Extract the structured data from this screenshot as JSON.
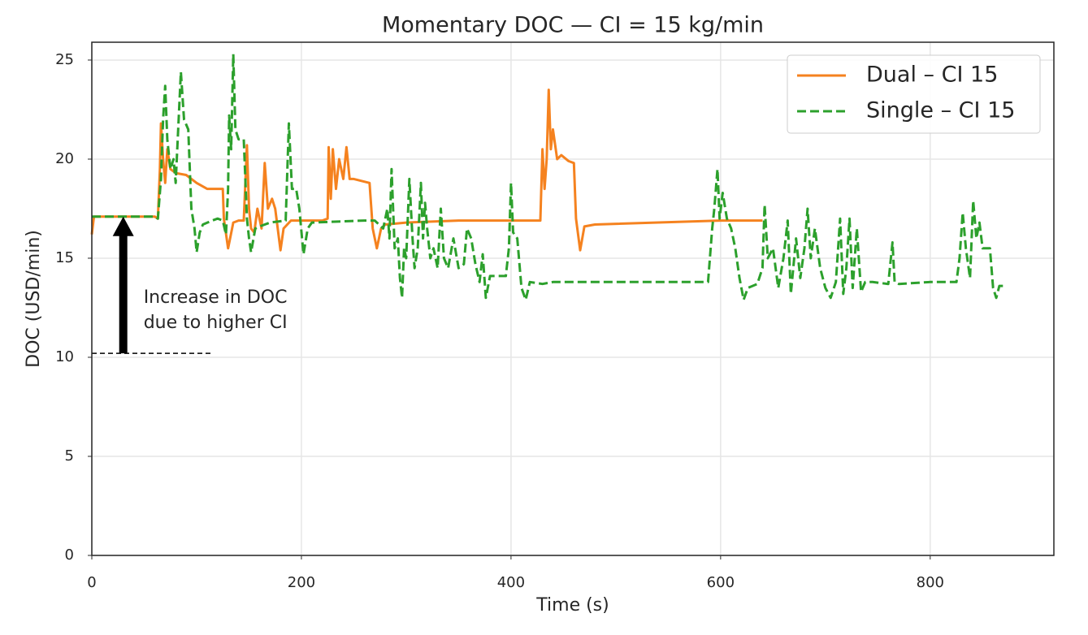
{
  "chart_data": {
    "type": "line",
    "title": "Momentary DOC — CI = 15 kg/min",
    "x_label": "Time (s)",
    "y_label": "DOC (USD/min)",
    "xlim": [
      0,
      918
    ],
    "ylim": [
      0,
      25.9
    ],
    "xticks": [
      0,
      200,
      400,
      600,
      800
    ],
    "yticks": [
      0,
      5,
      10,
      15,
      20,
      25
    ],
    "grid": true,
    "legend": "upper right",
    "annotation": {
      "lines": [
        "Increase in DOC",
        "due to higher CI"
      ],
      "x": 30,
      "from": 10.2,
      "to": 17.1,
      "reference_xlim": [
        0,
        115
      ]
    },
    "series": [
      {
        "name": "Dual – CI 15",
        "color": "#f5821f",
        "style": "solid",
        "x": [
          0,
          2,
          60,
          63,
          65,
          66,
          68,
          70,
          72,
          75,
          80,
          90,
          100,
          110,
          125,
          126,
          130,
          132,
          135,
          140,
          145,
          148,
          150,
          152,
          155,
          158,
          162,
          165,
          168,
          172,
          175,
          180,
          183,
          190,
          220,
          225,
          226,
          228,
          230,
          233,
          236,
          240,
          243,
          246,
          250,
          265,
          268,
          272,
          276,
          280,
          300,
          350,
          420,
          428,
          430,
          432,
          434,
          436,
          438,
          440,
          444,
          448,
          455,
          460,
          462,
          466,
          470,
          480,
          600,
          640
        ],
        "values": [
          16.2,
          17.1,
          17.1,
          17.0,
          19.5,
          21.8,
          20,
          18.8,
          20.5,
          19.5,
          19.3,
          19.2,
          18.8,
          18.5,
          18.5,
          17.0,
          15.5,
          16.0,
          16.8,
          16.9,
          16.9,
          20.7,
          17.5,
          16.5,
          16.3,
          17.5,
          16.5,
          19.8,
          17.5,
          18.0,
          17.5,
          15.4,
          16.5,
          16.9,
          16.9,
          17.0,
          20.6,
          18.0,
          20.5,
          18.5,
          20.0,
          19.0,
          20.6,
          19.0,
          19.0,
          18.8,
          16.5,
          15.5,
          16.5,
          16.7,
          16.8,
          16.9,
          16.9,
          16.9,
          20.5,
          18.5,
          20.0,
          23.5,
          20.5,
          21.5,
          20.0,
          20.2,
          19.9,
          19.8,
          17.0,
          15.4,
          16.6,
          16.7,
          16.9,
          16.9
        ]
      },
      {
        "name": "Single – CI 15",
        "color": "#2ca02c",
        "style": "dashed",
        "x": [
          0,
          60,
          63,
          66,
          68,
          70,
          72,
          75,
          78,
          80,
          85,
          88,
          92,
          95,
          98,
          100,
          103,
          106,
          115,
          120,
          125,
          128,
          130,
          131,
          133,
          135,
          137,
          140,
          145,
          148,
          150,
          152,
          156,
          160,
          170,
          185,
          188,
          191,
          195,
          198,
          202,
          206,
          210,
          260,
          270,
          278,
          282,
          284,
          286,
          289,
          292,
          294,
          296,
          298,
          300,
          303,
          306,
          308,
          311,
          314,
          316,
          318,
          320,
          323,
          326,
          330,
          333,
          336,
          340,
          345,
          350,
          355,
          358,
          362,
          366,
          370,
          373,
          376,
          380,
          395,
          398,
          400,
          402,
          406,
          410,
          414,
          418,
          430,
          440,
          580,
          588,
          592,
          594,
          597,
          599,
          602,
          606,
          610,
          614,
          618,
          622,
          626,
          635,
          640,
          642,
          645,
          650,
          655,
          660,
          664,
          667,
          672,
          676,
          680,
          683,
          686,
          690,
          695,
          700,
          705,
          710,
          714,
          717,
          720,
          723,
          726,
          730,
          734,
          738,
          745,
          760,
          764,
          766,
          770,
          800,
          825,
          828,
          831,
          834,
          838,
          841,
          844,
          847,
          850,
          857,
          860,
          863,
          866,
          872
        ],
        "values": [
          17.1,
          17.1,
          17.0,
          19.0,
          22,
          23.7,
          21,
          19.5,
          20,
          18.8,
          24.4,
          22,
          21.5,
          17.5,
          16.5,
          15.3,
          16.3,
          16.7,
          16.9,
          17.0,
          16.9,
          16.2,
          18.5,
          22.2,
          20.5,
          25.3,
          21.5,
          21,
          21,
          17.0,
          16.0,
          15.3,
          16.5,
          16.6,
          16.8,
          16.9,
          21.8,
          18.5,
          18.5,
          17.5,
          15.2,
          16.5,
          16.8,
          16.9,
          16.9,
          16.5,
          17.5,
          16.0,
          19.5,
          15.5,
          16.0,
          14.0,
          13.0,
          15.5,
          15.0,
          19.0,
          16.0,
          14.5,
          15.5,
          18.8,
          16.0,
          17.8,
          16.5,
          15.0,
          15.5,
          14.5,
          17.5,
          15.0,
          14.5,
          16.0,
          14.5,
          14.7,
          16.5,
          16.0,
          14.7,
          13.8,
          15.2,
          13.0,
          14.1,
          14.1,
          15.5,
          18.8,
          16.3,
          16.0,
          13.5,
          12.9,
          13.8,
          13.7,
          13.8,
          13.8,
          13.8,
          16.5,
          17.5,
          19.5,
          17.0,
          18.3,
          17.0,
          16.5,
          15.5,
          14.0,
          12.9,
          13.5,
          13.7,
          14.5,
          17.7,
          15.0,
          15.5,
          13.5,
          15.0,
          16.9,
          13.2,
          16.0,
          14.0,
          15.5,
          17.5,
          15.0,
          16.5,
          14.5,
          13.5,
          13.0,
          13.8,
          17.0,
          13.2,
          14.5,
          17.0,
          13.5,
          16.5,
          13.3,
          13.8,
          13.8,
          13.7,
          15.8,
          13.8,
          13.7,
          13.8,
          13.8,
          15.0,
          17.3,
          15.5,
          14.0,
          17.9,
          16.0,
          16.8,
          15.5,
          15.5,
          13.5,
          13.0,
          13.6,
          13.6
        ]
      }
    ]
  }
}
